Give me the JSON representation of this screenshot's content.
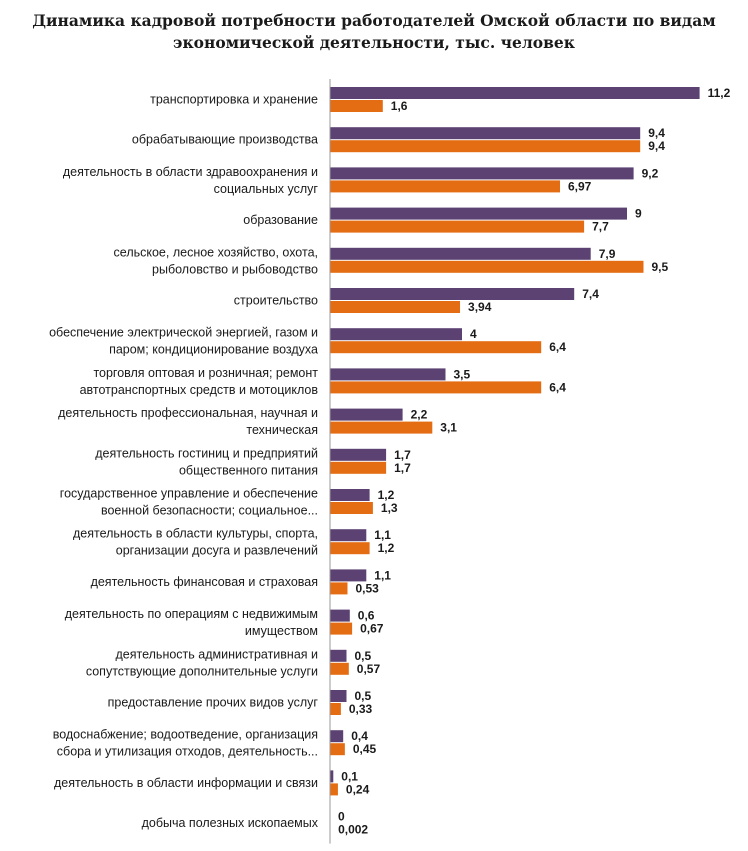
{
  "title_line1": "Динамика кадровой потребности работодателей Омской области по видам",
  "title_line2": "экономической деятельности, тыс. человек",
  "colors": {
    "series_1": "#5b4272",
    "series_2": "#e46c12",
    "axis": "#9a9a9a"
  },
  "chart_data": {
    "type": "bar",
    "orientation": "horizontal",
    "title": "Динамика кадровой потребности работодателей Омской области по видам экономической деятельности, тыс. человек",
    "xlim": [
      0,
      11.2
    ],
    "grid": false,
    "legend": "none",
    "categories": [
      [
        "транспортировка и хранение"
      ],
      [
        "обрабатывающие производства"
      ],
      [
        "деятельность в области здравоохранения и",
        "социальных услуг"
      ],
      [
        "образование"
      ],
      [
        "сельское, лесное хозяйство, охота,",
        "рыболовство и рыбоводство"
      ],
      [
        "строительство"
      ],
      [
        "обеспечение электрической энергией, газом и",
        "паром; кондиционирование воздуха"
      ],
      [
        "торговля оптовая и розничная; ремонт",
        "автотранспортных средств и мотоциклов"
      ],
      [
        "деятельность профессиональная, научная и",
        "техническая"
      ],
      [
        "деятельность гостиниц и предприятий",
        "общественного питания"
      ],
      [
        "государственное управление и обеспечение",
        "военной безопасности; социальное..."
      ],
      [
        "деятельность в области культуры, спорта,",
        "организации досуга и развлечений"
      ],
      [
        "деятельность финансовая и страховая"
      ],
      [
        "деятельность по операциям с недвижимым",
        "имуществом"
      ],
      [
        "деятельность административная и",
        "сопутствующие дополнительные услуги"
      ],
      [
        "предоставление прочих видов услуг"
      ],
      [
        "водоснабжение; водоотведение, организация",
        "сбора и утилизация отходов, деятельность..."
      ],
      [
        "деятельность в области информации и связи"
      ],
      [
        "добыча полезных ископаемых"
      ]
    ],
    "series": [
      {
        "values": [
          11.2,
          9.4,
          9.2,
          9,
          7.9,
          7.4,
          4,
          3.5,
          2.2,
          1.7,
          1.2,
          1.1,
          1.1,
          0.6,
          0.5,
          0.5,
          0.4,
          0.1,
          0
        ],
        "labels": [
          "11,2",
          "9,4",
          "9,2",
          "9",
          "7,9",
          "7,4",
          "4",
          "3,5",
          "2,2",
          "1,7",
          "1,2",
          "1,1",
          "1,1",
          "0,6",
          "0,5",
          "0,5",
          "0,4",
          "0,1",
          "0"
        ]
      },
      {
        "values": [
          1.6,
          9.4,
          6.97,
          7.7,
          9.5,
          3.94,
          6.4,
          6.4,
          3.1,
          1.7,
          1.3,
          1.2,
          0.53,
          0.67,
          0.57,
          0.33,
          0.45,
          0.24,
          0.002
        ],
        "labels": [
          "1,6",
          "9,4",
          "6,97",
          "7,7",
          "9,5",
          "3,94",
          "6,4",
          "6,4",
          "3,1",
          "1,7",
          "1,3",
          "1,2",
          "0,53",
          "0,67",
          "0,57",
          "0,33",
          "0,45",
          "0,24",
          "0,002"
        ]
      }
    ]
  }
}
